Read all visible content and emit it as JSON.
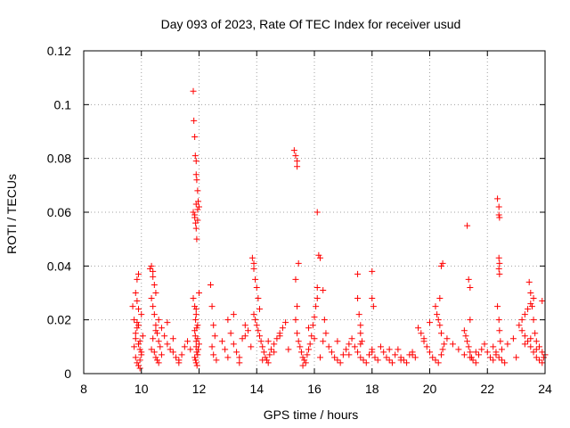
{
  "chart_data": {
    "type": "scatter",
    "title": "Day 093 of 2023, Rate Of TEC Index for receiver usud",
    "xlabel": "GPS time / hours",
    "ylabel": "ROTI / TECUs",
    "xlim": [
      8,
      24
    ],
    "ylim": [
      0,
      0.12
    ],
    "x_ticks": [
      "8",
      "10",
      "12",
      "14",
      "16",
      "18",
      "20",
      "22",
      "24"
    ],
    "y_ticks": [
      "0",
      "0.02",
      "0.04",
      "0.06",
      "0.08",
      "0.1",
      "0.12"
    ],
    "grid": true,
    "marker": "plus",
    "color": "#ff0000",
    "series": [
      {
        "x": [
          9.7,
          9.75,
          9.8,
          9.8,
          9.85,
          9.85,
          9.9,
          9.9,
          9.95,
          10.0,
          10.0,
          10.05,
          9.75,
          9.8,
          9.85,
          9.9,
          9.95,
          9.8,
          9.85,
          9.9,
          9.95,
          10.0,
          9.85,
          9.9,
          9.95,
          10.3,
          10.35,
          10.4,
          10.4,
          10.45,
          10.5,
          10.35,
          10.4,
          10.45,
          10.5,
          10.55,
          10.6,
          10.65,
          10.45,
          10.5,
          10.55,
          10.6,
          10.7,
          10.35,
          10.4,
          10.5,
          10.6,
          10.7,
          10.8,
          10.9,
          11.0,
          11.1,
          11.2,
          11.3,
          11.4,
          11.5,
          11.6,
          11.7,
          10.9,
          11.1,
          11.3,
          11.8,
          11.82,
          11.85,
          11.87,
          11.9,
          11.9,
          11.92,
          11.95,
          11.97,
          12.0,
          11.8,
          11.85,
          11.88,
          11.9,
          11.92,
          11.95,
          11.85,
          11.9,
          11.95,
          12.0,
          11.8,
          11.85,
          11.9,
          11.95,
          11.85,
          11.87,
          11.9,
          11.9,
          11.92,
          11.85,
          11.88,
          11.9,
          11.93,
          11.95,
          11.97,
          12.0,
          11.88,
          11.9,
          11.92,
          11.95,
          12.4,
          12.45,
          12.5,
          12.55,
          12.45,
          12.5,
          12.6,
          12.8,
          12.9,
          13.0,
          13.1,
          13.2,
          13.3,
          13.4,
          13.5,
          13.6,
          13.7,
          13.8,
          13.0,
          13.2,
          13.4,
          13.6,
          13.85,
          13.9,
          13.9,
          13.95,
          14.0,
          14.05,
          14.1,
          13.9,
          13.95,
          14.0,
          14.05,
          14.1,
          14.15,
          14.2,
          14.25,
          14.3,
          14.35,
          14.4,
          14.45,
          14.5,
          14.6,
          14.7,
          14.8,
          14.9,
          15.0,
          15.1,
          14.2,
          14.4,
          14.6,
          14.8,
          15.3,
          15.35,
          15.4,
          15.4,
          15.45,
          15.35,
          15.4,
          15.35,
          15.4,
          15.45,
          15.5,
          15.55,
          15.6,
          15.65,
          15.7,
          15.75,
          15.8,
          15.85,
          15.9,
          15.95,
          16.0,
          16.05,
          16.1,
          15.6,
          15.8,
          16.0,
          16.2,
          16.1,
          16.15,
          16.2,
          16.1,
          16.3,
          16.35,
          16.4,
          16.3,
          16.5,
          16.6,
          16.7,
          16.8,
          16.9,
          17.0,
          17.1,
          17.2,
          17.3,
          17.4,
          17.5,
          17.6,
          17.7,
          17.8,
          17.9,
          18.0,
          18.1,
          18.2,
          16.8,
          17.2,
          17.6,
          18.0,
          17.5,
          17.5,
          17.55,
          17.6,
          17.6,
          17.65,
          18.0,
          18.0,
          18.05,
          18.3,
          18.4,
          18.5,
          18.6,
          18.7,
          18.8,
          18.9,
          19.0,
          19.1,
          19.2,
          19.3,
          19.4,
          19.5,
          18.6,
          19.0,
          19.4,
          19.6,
          19.7,
          19.8,
          19.9,
          20.0,
          20.1,
          20.2,
          20.3,
          20.4,
          20.45,
          20.5,
          19.8,
          20.0,
          20.2,
          20.35,
          20.4,
          20.45,
          20.25,
          20.3,
          20.35,
          20.4,
          20.6,
          20.8,
          21.0,
          21.2,
          21.4,
          21.6,
          21.3,
          21.35,
          21.4,
          21.4,
          21.2,
          21.25,
          21.3,
          21.35,
          21.4,
          21.45,
          21.5,
          21.6,
          21.7,
          21.8,
          21.9,
          22.0,
          22.1,
          22.2,
          22.35,
          22.4,
          22.4,
          22.42,
          22.4,
          22.42,
          22.4,
          22.42,
          22.35,
          22.4,
          22.42,
          22.45,
          22.2,
          22.3,
          22.4,
          22.5,
          22.6,
          22.3,
          22.5,
          22.7,
          22.9,
          23.0,
          23.1,
          23.2,
          23.3,
          23.4,
          23.5,
          23.6,
          23.7,
          23.8,
          23.9,
          24.0,
          23.2,
          23.3,
          23.4,
          23.5,
          23.6,
          23.45,
          23.5,
          23.55,
          23.6,
          23.65,
          23.7,
          23.8,
          23.9,
          23.95,
          23.3,
          23.5,
          23.7,
          23.9
        ],
        "y": [
          0.025,
          0.02,
          0.015,
          0.03,
          0.027,
          0.035,
          0.037,
          0.018,
          0.012,
          0.008,
          0.022,
          0.014,
          0.01,
          0.006,
          0.004,
          0.003,
          0.009,
          0.013,
          0.017,
          0.011,
          0.005,
          0.007,
          0.019,
          0.024,
          0.002,
          0.039,
          0.04,
          0.038,
          0.036,
          0.033,
          0.03,
          0.028,
          0.025,
          0.022,
          0.018,
          0.015,
          0.012,
          0.01,
          0.008,
          0.006,
          0.005,
          0.004,
          0.007,
          0.009,
          0.013,
          0.016,
          0.02,
          0.017,
          0.014,
          0.011,
          0.009,
          0.008,
          0.006,
          0.005,
          0.007,
          0.01,
          0.012,
          0.009,
          0.019,
          0.013,
          0.004,
          0.105,
          0.094,
          0.088,
          0.081,
          0.079,
          0.074,
          0.072,
          0.068,
          0.064,
          0.062,
          0.06,
          0.058,
          0.056,
          0.054,
          0.05,
          0.061,
          0.059,
          0.063,
          0.057,
          0.03,
          0.028,
          0.025,
          0.022,
          0.018,
          0.016,
          0.014,
          0.012,
          0.01,
          0.008,
          0.006,
          0.005,
          0.004,
          0.003,
          0.007,
          0.009,
          0.011,
          0.02,
          0.024,
          0.017,
          0.013,
          0.033,
          0.025,
          0.018,
          0.014,
          0.01,
          0.007,
          0.005,
          0.012,
          0.009,
          0.006,
          0.015,
          0.011,
          0.008,
          0.004,
          0.013,
          0.018,
          0.016,
          0.01,
          0.02,
          0.022,
          0.006,
          0.014,
          0.043,
          0.041,
          0.039,
          0.035,
          0.032,
          0.028,
          0.024,
          0.022,
          0.02,
          0.018,
          0.016,
          0.014,
          0.012,
          0.01,
          0.008,
          0.006,
          0.005,
          0.004,
          0.007,
          0.009,
          0.011,
          0.013,
          0.015,
          0.017,
          0.019,
          0.009,
          0.005,
          0.012,
          0.008,
          0.014,
          0.083,
          0.081,
          0.079,
          0.077,
          0.041,
          0.035,
          0.025,
          0.02,
          0.015,
          0.012,
          0.01,
          0.008,
          0.006,
          0.005,
          0.004,
          0.007,
          0.009,
          0.011,
          0.014,
          0.018,
          0.021,
          0.025,
          0.028,
          0.003,
          0.017,
          0.013,
          0.006,
          0.06,
          0.044,
          0.043,
          0.032,
          0.031,
          0.02,
          0.015,
          0.012,
          0.01,
          0.008,
          0.006,
          0.005,
          0.004,
          0.007,
          0.009,
          0.011,
          0.013,
          0.01,
          0.008,
          0.006,
          0.005,
          0.004,
          0.007,
          0.009,
          0.006,
          0.005,
          0.012,
          0.007,
          0.011,
          0.008,
          0.037,
          0.028,
          0.022,
          0.018,
          0.015,
          0.012,
          0.038,
          0.028,
          0.025,
          0.01,
          0.008,
          0.006,
          0.005,
          0.004,
          0.007,
          0.009,
          0.006,
          0.005,
          0.004,
          0.007,
          0.008,
          0.006,
          0.009,
          0.005,
          0.007,
          0.017,
          0.015,
          0.012,
          0.01,
          0.008,
          0.006,
          0.005,
          0.004,
          0.007,
          0.009,
          0.011,
          0.013,
          0.019,
          0.025,
          0.028,
          0.04,
          0.041,
          0.022,
          0.02,
          0.018,
          0.015,
          0.013,
          0.011,
          0.009,
          0.007,
          0.006,
          0.008,
          0.055,
          0.035,
          0.032,
          0.02,
          0.016,
          0.014,
          0.012,
          0.01,
          0.008,
          0.006,
          0.005,
          0.004,
          0.007,
          0.009,
          0.011,
          0.008,
          0.006,
          0.005,
          0.065,
          0.062,
          0.059,
          0.058,
          0.043,
          0.041,
          0.039,
          0.037,
          0.025,
          0.02,
          0.016,
          0.012,
          0.01,
          0.008,
          0.006,
          0.005,
          0.004,
          0.007,
          0.009,
          0.011,
          0.013,
          0.006,
          0.018,
          0.016,
          0.014,
          0.012,
          0.01,
          0.008,
          0.006,
          0.005,
          0.004,
          0.007,
          0.02,
          0.022,
          0.024,
          0.026,
          0.028,
          0.034,
          0.03,
          0.025,
          0.02,
          0.015,
          0.012,
          0.01,
          0.008,
          0.006,
          0.011,
          0.013,
          0.009,
          0.027
        ]
      }
    ]
  }
}
